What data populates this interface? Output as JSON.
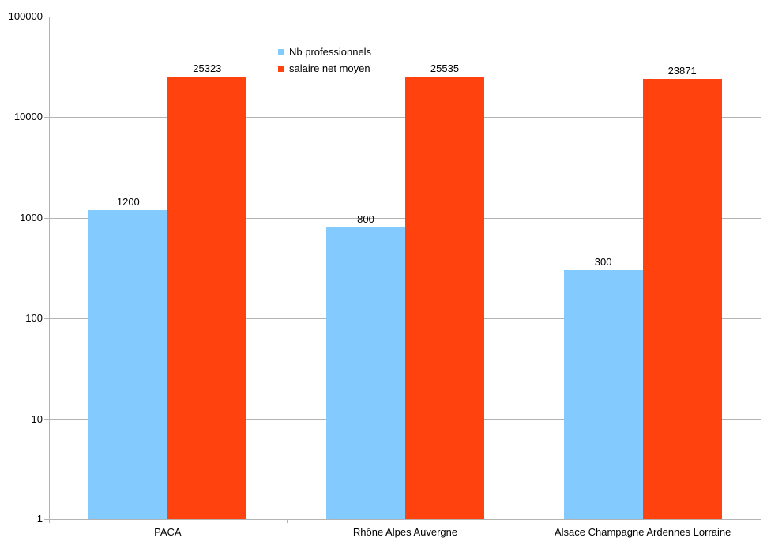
{
  "chart_data": {
    "type": "bar",
    "title": "",
    "xlabel": "",
    "ylabel": "",
    "y_scale": "log",
    "ylim": [
      1,
      100000
    ],
    "yticks": [
      1,
      10,
      100,
      1000,
      10000,
      100000
    ],
    "grid": true,
    "legend_position": "top-center-inside",
    "categories": [
      "PACA",
      "Rhône Alpes Auvergne",
      "Alsace Champagne Ardennes Lorraine"
    ],
    "series": [
      {
        "name": "Nb professionnels",
        "color": "#83CAFF",
        "values": [
          1200,
          800,
          300
        ]
      },
      {
        "name": "salaire net moyen",
        "color": "#FF420E",
        "values": [
          25323,
          25535,
          23871
        ]
      }
    ],
    "colors": {
      "gridline": "#b3b3b3",
      "axis": "#b3b3b3",
      "text": "#000000",
      "background": "#ffffff"
    }
  }
}
